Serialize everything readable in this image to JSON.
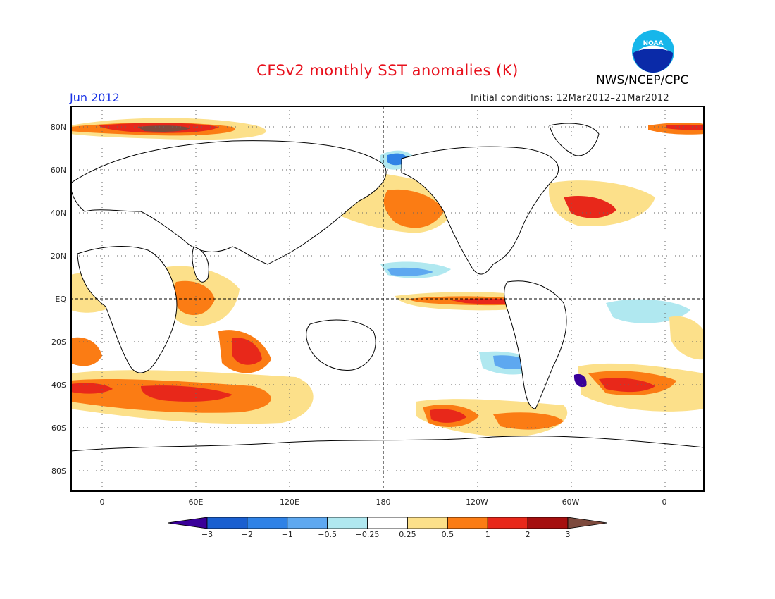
{
  "title": "CFSv2 monthly SST anomalies (K)",
  "org": "NWS/NCEP/CPC",
  "logo_text": "NOAA",
  "month": "Jun 2012",
  "initial_conditions": "Initial conditions: 12Mar2012–21Mar2012",
  "lat_labels": [
    "80N",
    "60N",
    "40N",
    "20N",
    "EQ",
    "20S",
    "40S",
    "60S",
    "80S"
  ],
  "lon_labels": [
    "0",
    "60E",
    "120E",
    "180",
    "120W",
    "60W",
    "0"
  ],
  "colorbar": {
    "labels": [
      "−3",
      "−2",
      "−1",
      "−0.5",
      "−0.25",
      "0.25",
      "0.5",
      "1",
      "2",
      "3"
    ],
    "colors": [
      "#3a0099",
      "#1a5fd0",
      "#2f82e6",
      "#5ea8f0",
      "#b0e8f0",
      "#ffffff",
      "#fce08a",
      "#fb7c14",
      "#e8281a",
      "#a50f0f",
      "#7d4a3d"
    ]
  }
}
